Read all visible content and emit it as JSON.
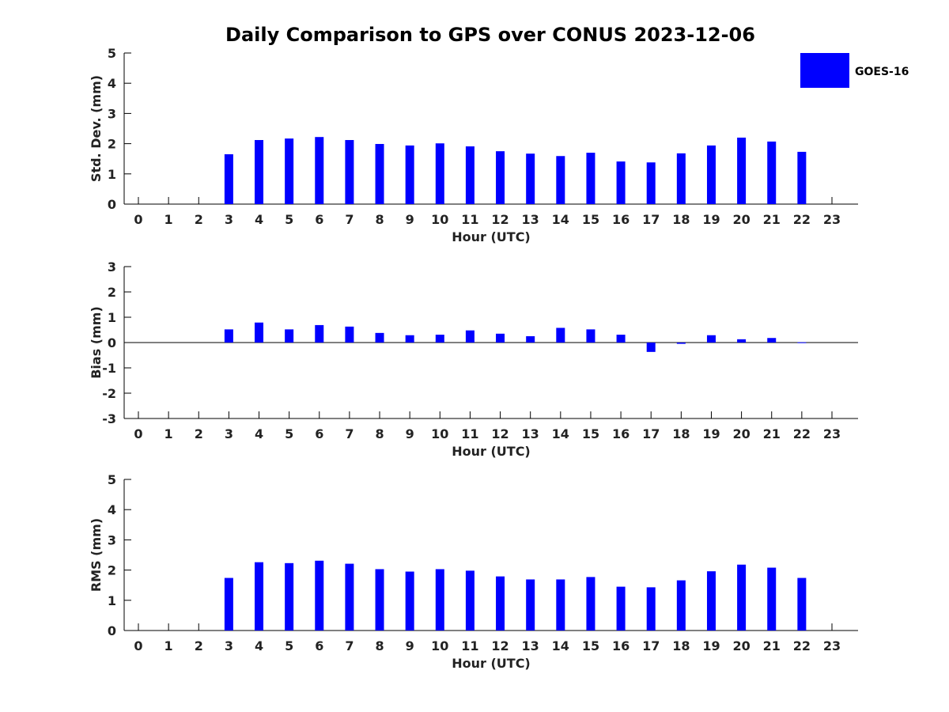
{
  "title": "Daily Comparison to GPS over CONUS 2023-12-06",
  "legend": {
    "label": "GOES-16",
    "color": "#0000ff",
    "placement": "top-right"
  },
  "chart_data": [
    {
      "type": "bar",
      "ylabel": "Std. Dev. (mm)",
      "xlabel": "Hour (UTC)",
      "ylim": [
        0,
        5
      ],
      "yticks": [
        "0",
        "1",
        "2",
        "3",
        "4",
        "5"
      ],
      "categories": [
        "0",
        "1",
        "2",
        "3",
        "4",
        "5",
        "6",
        "7",
        "8",
        "9",
        "10",
        "11",
        "12",
        "13",
        "14",
        "15",
        "16",
        "17",
        "18",
        "19",
        "20",
        "21",
        "22",
        "23"
      ],
      "series": [
        {
          "name": "GOES-16",
          "color": "#0000ff",
          "values": [
            null,
            null,
            null,
            1.65,
            2.12,
            2.17,
            2.22,
            2.12,
            1.99,
            1.94,
            2.01,
            1.91,
            1.75,
            1.67,
            1.59,
            1.7,
            1.41,
            1.38,
            1.68,
            1.94,
            2.2,
            2.07,
            1.73,
            null
          ]
        }
      ]
    },
    {
      "type": "bar",
      "ylabel": "Bias (mm)",
      "xlabel": "Hour (UTC)",
      "ylim": [
        -3,
        3
      ],
      "yticks": [
        "-3",
        "-2",
        "-1",
        "0",
        "1",
        "2",
        "3"
      ],
      "categories": [
        "0",
        "1",
        "2",
        "3",
        "4",
        "5",
        "6",
        "7",
        "8",
        "9",
        "10",
        "11",
        "12",
        "13",
        "14",
        "15",
        "16",
        "17",
        "18",
        "19",
        "20",
        "21",
        "22",
        "23"
      ],
      "series": [
        {
          "name": "GOES-16",
          "color": "#0000ff",
          "values": [
            null,
            null,
            null,
            0.52,
            0.79,
            0.52,
            0.69,
            0.63,
            0.38,
            0.29,
            0.31,
            0.48,
            0.35,
            0.25,
            0.58,
            0.52,
            0.31,
            -0.37,
            -0.05,
            0.29,
            0.13,
            0.18,
            0.01,
            null
          ]
        }
      ]
    },
    {
      "type": "bar",
      "ylabel": "RMS (mm)",
      "xlabel": "Hour (UTC)",
      "ylim": [
        0,
        5
      ],
      "yticks": [
        "0",
        "1",
        "2",
        "3",
        "4",
        "5"
      ],
      "categories": [
        "0",
        "1",
        "2",
        "3",
        "4",
        "5",
        "6",
        "7",
        "8",
        "9",
        "10",
        "11",
        "12",
        "13",
        "14",
        "15",
        "16",
        "17",
        "18",
        "19",
        "20",
        "21",
        "22",
        "23"
      ],
      "series": [
        {
          "name": "GOES-16",
          "color": "#0000ff",
          "values": [
            null,
            null,
            null,
            1.74,
            2.26,
            2.23,
            2.31,
            2.21,
            2.03,
            1.95,
            2.03,
            1.98,
            1.79,
            1.69,
            1.69,
            1.77,
            1.45,
            1.43,
            1.66,
            1.96,
            2.18,
            2.08,
            1.74,
            null
          ]
        }
      ]
    }
  ]
}
